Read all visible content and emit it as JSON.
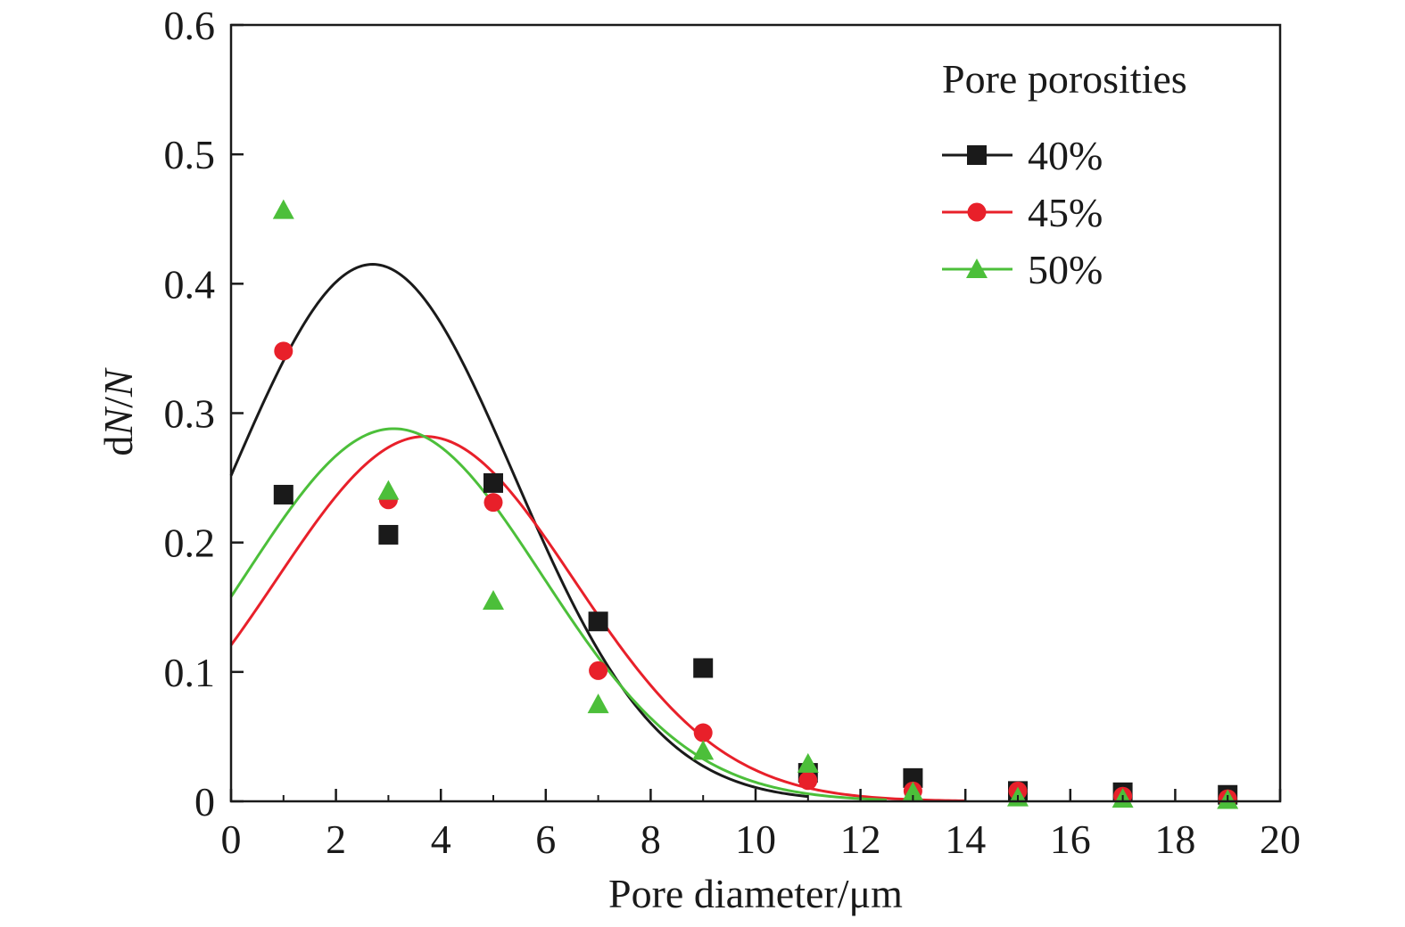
{
  "chart_data": {
    "type": "scatter",
    "xlabel": "Pore diameter/μm",
    "ylabel_prefix": "d",
    "ylabel_N1": "N",
    "ylabel_slash": "/",
    "ylabel_N2": "N",
    "xlim": [
      0,
      20
    ],
    "ylim": [
      0,
      0.6
    ],
    "xticks": [
      0,
      2,
      4,
      6,
      8,
      10,
      12,
      14,
      16,
      18,
      20
    ],
    "yticks": [
      0,
      0.1,
      0.2,
      0.3,
      0.4,
      0.5,
      0.6
    ],
    "xtick_labels": [
      "0",
      "2",
      "4",
      "6",
      "8",
      "10",
      "12",
      "14",
      "16",
      "18",
      "20"
    ],
    "ytick_labels": [
      "0",
      "0.1",
      "0.2",
      "0.3",
      "0.4",
      "0.5",
      "0.6"
    ],
    "grid": false,
    "legend_title": "Pore porosities",
    "legend_position": "top-right",
    "series": [
      {
        "name": "40%",
        "color": "#1a1a1a",
        "marker": "square",
        "points": [
          [
            1,
            0.237
          ],
          [
            3,
            0.206
          ],
          [
            5,
            0.246
          ],
          [
            7,
            0.139
          ],
          [
            9,
            0.103
          ],
          [
            11,
            0.022
          ],
          [
            13,
            0.018
          ],
          [
            15,
            0.008
          ],
          [
            17,
            0.007
          ],
          [
            19,
            0.005
          ]
        ],
        "fit": {
          "amplitude": 0.415,
          "center": 2.7,
          "sigma": 2.7,
          "x_range": [
            0,
            11
          ]
        }
      },
      {
        "name": "45%",
        "color": "#e8202a",
        "marker": "circle",
        "points": [
          [
            1,
            0.348
          ],
          [
            3,
            0.233
          ],
          [
            5,
            0.231
          ],
          [
            7,
            0.101
          ],
          [
            9,
            0.053
          ],
          [
            11,
            0.016
          ],
          [
            13,
            0.008
          ],
          [
            15,
            0.008
          ],
          [
            17,
            0.004
          ],
          [
            19,
            0.002
          ]
        ],
        "fit": {
          "amplitude": 0.282,
          "center": 3.7,
          "sigma": 2.84,
          "x_range": [
            0,
            14
          ]
        }
      },
      {
        "name": "50%",
        "color": "#4cbf3a",
        "marker": "triangle",
        "points": [
          [
            1,
            0.457
          ],
          [
            3,
            0.24
          ],
          [
            5,
            0.155
          ],
          [
            7,
            0.075
          ],
          [
            9,
            0.039
          ],
          [
            11,
            0.029
          ],
          [
            13,
            0.007
          ],
          [
            15,
            0.003
          ],
          [
            17,
            0.002
          ],
          [
            19,
            0.001
          ]
        ],
        "fit": {
          "amplitude": 0.288,
          "center": 3.1,
          "sigma": 2.83,
          "x_range": [
            0,
            12.5
          ]
        }
      }
    ]
  }
}
